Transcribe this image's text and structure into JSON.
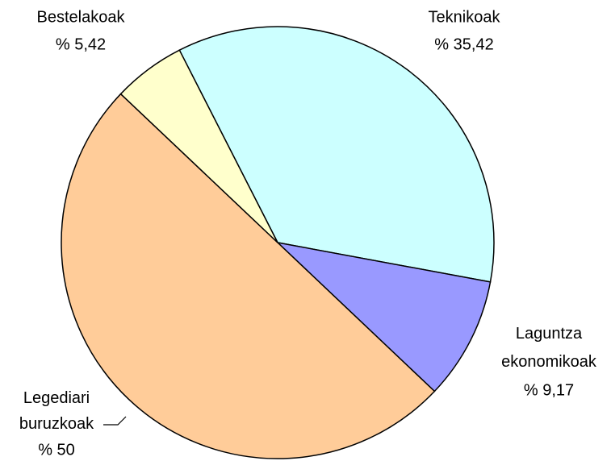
{
  "chart_data": {
    "type": "pie",
    "categories": [
      "Teknikoak",
      "Laguntza ekonomikoak",
      "Legediari buruzkoak",
      "Bestelakoak"
    ],
    "values": [
      35.42,
      9.17,
      50,
      5.42
    ],
    "value_labels": [
      "% 35,42",
      "% 9,17",
      "% 50",
      "% 5,42"
    ],
    "colors": [
      "#ccffff",
      "#9999ff",
      "#ffcc99",
      "#ffffcc"
    ]
  }
}
